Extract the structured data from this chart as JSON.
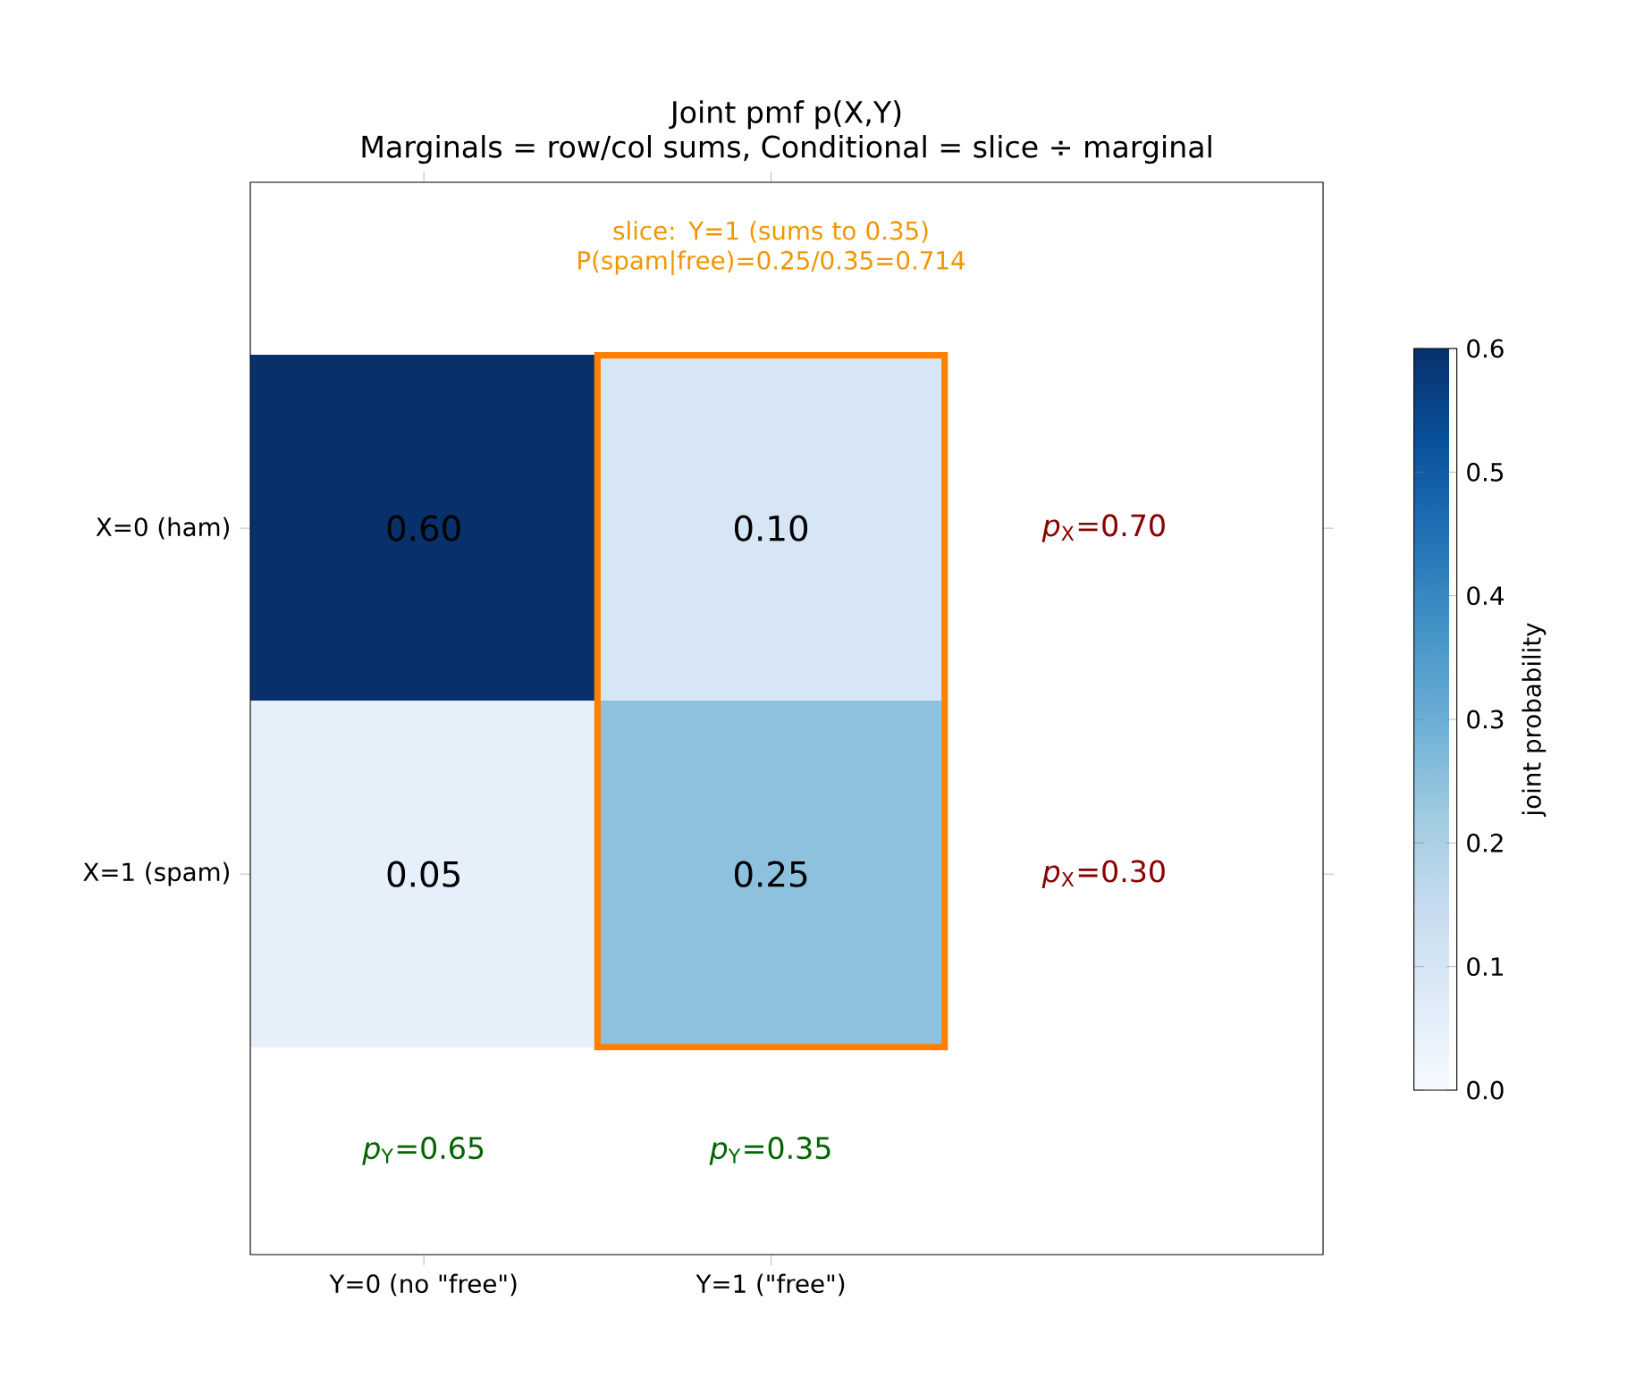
{
  "chart_data": {
    "type": "heatmap",
    "title": "Joint pmf p(X,Y)",
    "subtitle": "Marginals = row/col sums, Conditional = slice ÷ marginal",
    "categories": [
      "Y=0 (no \"free\")",
      "Y=1 (\"free\")"
    ],
    "y_categories": [
      "X=0 (ham)",
      "X=1 (spam)"
    ],
    "cells": [
      [
        0.6,
        0.1
      ],
      [
        0.05,
        0.25
      ]
    ],
    "cell_labels": [
      [
        "0.60",
        "0.10"
      ],
      [
        "0.05",
        "0.25"
      ]
    ],
    "clim": [
      0,
      0.6
    ],
    "cticks": [
      {
        "value": 0,
        "label": "0.0"
      },
      0.1,
      0.2,
      0.3,
      0.4,
      0.5,
      0.6
    ],
    "clabel": "joint probability",
    "annotations": [
      "*p*$_{X}$=0.70",
      "*p*$_{X}$=0.30",
      "*p*$_{Y}$=0.65",
      "*p*$_{Y}$=0.35",
      "slice: Y=1 (sums to 0.35) P(spam|free)=0.25/0.35=0.714"
    ]
  }
}
